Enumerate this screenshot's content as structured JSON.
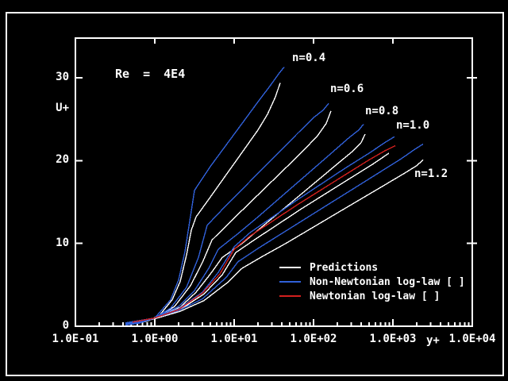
{
  "colors": {
    "background": "#000000",
    "frame": "#FFFFFF",
    "text": "#FFFFFF",
    "predictions": "#FFFFFF",
    "non_newtonian": "#3060D8",
    "newtonian": "#D2201E"
  },
  "legend": {
    "items": [
      {
        "label": "Predictions",
        "color": "#FFFFFF"
      },
      {
        "label": "Non-Newtonian log-law [ ]",
        "color": "#3060D8"
      },
      {
        "label": "Newtonian log-law [ ]",
        "color": "#D2201E"
      }
    ]
  },
  "chart_data": {
    "type": "line",
    "annotation": "Re = 4E4",
    "x_axis": {
      "label": "y+",
      "scale": "log10",
      "range_log10": [
        -1,
        4
      ],
      "tick_labels": [
        {
          "text": "1.0E-01",
          "log": -1
        },
        {
          "text": "1.0E+00",
          "log": 0
        },
        {
          "text": "1.0E+01",
          "log": 1
        },
        {
          "text": "1.0E+02",
          "log": 2
        },
        {
          "text": "1.0E+03",
          "log": 3
        },
        {
          "text": "1.0E+04",
          "log": 4
        }
      ],
      "top_tick_logs": [
        0,
        1,
        2,
        3
      ],
      "minor_ticks": "log decades, multiples 2-9"
    },
    "y_axis": {
      "label": "U+",
      "range": [
        0,
        34.8
      ],
      "tick_labels": [
        {
          "text": "0",
          "value": 0
        },
        {
          "text": "10",
          "value": 10
        },
        {
          "text": "20",
          "value": 20
        },
        {
          "text": "30",
          "value": 30
        }
      ],
      "right_tick_values": [
        10,
        20,
        30
      ]
    },
    "curve_annotations": [
      {
        "text": "n=0.4",
        "x_log": 1.73,
        "u": 33.08
      },
      {
        "text": "n=0.6",
        "x_log": 2.21,
        "u": 29.34
      },
      {
        "text": "n=0.8",
        "x_log": 2.65,
        "u": 26.65
      },
      {
        "text": "n=1.0",
        "x_log": 3.04,
        "u": 24.93
      },
      {
        "text": "n=1.2",
        "x_log": 3.27,
        "u": 19.08
      }
    ],
    "series": [
      {
        "name": "Predictions n=0.4",
        "family": "Predictions",
        "n": 0.4,
        "color": "#FFFFFF",
        "points": [
          [
            -0.3,
            0.2
          ],
          [
            -0.1,
            0.6
          ],
          [
            0.05,
            1.2
          ],
          [
            0.22,
            3.2
          ],
          [
            0.32,
            5.4
          ],
          [
            0.4,
            8.6
          ],
          [
            0.46,
            11.6
          ],
          [
            0.52,
            13.2
          ],
          [
            0.7,
            15.6
          ],
          [
            0.9,
            18.3
          ],
          [
            1.1,
            21.0
          ],
          [
            1.3,
            23.7
          ],
          [
            1.42,
            25.6
          ],
          [
            1.52,
            27.7
          ],
          [
            1.58,
            29.4
          ]
        ]
      },
      {
        "name": "Predictions n=0.6",
        "family": "Predictions",
        "n": 0.6,
        "color": "#FFFFFF",
        "points": [
          [
            -0.3,
            0.3
          ],
          [
            -0.1,
            0.7
          ],
          [
            0.05,
            1.2
          ],
          [
            0.25,
            2.4
          ],
          [
            0.45,
            4.9
          ],
          [
            0.6,
            7.7
          ],
          [
            0.72,
            10.4
          ],
          [
            0.95,
            12.6
          ],
          [
            1.25,
            15.4
          ],
          [
            1.55,
            18.2
          ],
          [
            1.85,
            21.0
          ],
          [
            2.05,
            23.0
          ],
          [
            2.16,
            24.5
          ],
          [
            2.22,
            26.0
          ]
        ]
      },
      {
        "name": "Predictions n=0.8",
        "family": "Predictions",
        "n": 0.8,
        "color": "#FFFFFF",
        "points": [
          [
            -0.3,
            0.35
          ],
          [
            0.0,
            0.9
          ],
          [
            0.32,
            2.3
          ],
          [
            0.52,
            4.1
          ],
          [
            0.7,
            6.3
          ],
          [
            0.85,
            8.3
          ],
          [
            1.1,
            10.0
          ],
          [
            1.35,
            12.0
          ],
          [
            1.65,
            14.4
          ],
          [
            1.95,
            16.8
          ],
          [
            2.25,
            19.2
          ],
          [
            2.5,
            21.2
          ],
          [
            2.6,
            22.2
          ],
          [
            2.65,
            23.2
          ]
        ]
      },
      {
        "name": "Predictions n=1.0",
        "family": "Predictions",
        "n": 1.0,
        "color": "#FFFFFF",
        "points": [
          [
            -0.3,
            0.4
          ],
          [
            0.0,
            0.9
          ],
          [
            0.32,
            2.0
          ],
          [
            0.62,
            3.9
          ],
          [
            0.85,
            6.2
          ],
          [
            1.02,
            8.9
          ],
          [
            1.25,
            10.4
          ],
          [
            1.55,
            12.3
          ],
          [
            1.85,
            14.2
          ],
          [
            2.15,
            16.0
          ],
          [
            2.45,
            17.8
          ],
          [
            2.75,
            19.6
          ],
          [
            2.95,
            20.9
          ]
        ]
      },
      {
        "name": "Predictions n=1.2",
        "family": "Predictions",
        "n": 1.2,
        "color": "#FFFFFF",
        "points": [
          [
            -0.3,
            0.4
          ],
          [
            0.0,
            0.9
          ],
          [
            0.32,
            1.8
          ],
          [
            0.62,
            3.1
          ],
          [
            0.92,
            5.3
          ],
          [
            1.1,
            7.0
          ],
          [
            1.35,
            8.4
          ],
          [
            1.65,
            10.0
          ],
          [
            1.95,
            11.7
          ],
          [
            2.25,
            13.4
          ],
          [
            2.55,
            15.1
          ],
          [
            2.85,
            16.8
          ],
          [
            3.15,
            18.5
          ],
          [
            3.3,
            19.4
          ],
          [
            3.38,
            20.1
          ]
        ]
      },
      {
        "name": "Non-Newtonian log-law n=0.4",
        "family": "Non-Newtonian log-law",
        "n": 0.4,
        "color": "#3060D8",
        "points": [
          [
            -0.37,
            0.15
          ],
          [
            -0.2,
            0.35
          ],
          [
            0.0,
            1.0
          ],
          [
            0.2,
            3.2
          ],
          [
            0.3,
            5.6
          ],
          [
            0.38,
            9.0
          ],
          [
            0.45,
            13.3
          ],
          [
            0.5,
            16.4
          ],
          [
            0.7,
            19.3
          ],
          [
            0.9,
            21.9
          ],
          [
            1.1,
            24.5
          ],
          [
            1.3,
            27.1
          ],
          [
            1.45,
            29.0
          ],
          [
            1.57,
            30.6
          ],
          [
            1.63,
            31.3
          ]
        ]
      },
      {
        "name": "Non-Newtonian log-law n=0.6",
        "family": "Non-Newtonian log-law",
        "n": 0.6,
        "color": "#3060D8",
        "points": [
          [
            -0.37,
            0.25
          ],
          [
            -0.2,
            0.45
          ],
          [
            0.0,
            1.0
          ],
          [
            0.2,
            2.2
          ],
          [
            0.4,
            4.7
          ],
          [
            0.55,
            8.3
          ],
          [
            0.66,
            12.2
          ],
          [
            0.9,
            14.6
          ],
          [
            1.2,
            17.5
          ],
          [
            1.5,
            20.4
          ],
          [
            1.8,
            23.3
          ],
          [
            2.0,
            25.2
          ],
          [
            2.12,
            26.1
          ],
          [
            2.19,
            26.9
          ]
        ]
      },
      {
        "name": "Non-Newtonian log-law n=0.8",
        "family": "Non-Newtonian log-law",
        "n": 0.8,
        "color": "#3060D8",
        "points": [
          [
            -0.37,
            0.3
          ],
          [
            -0.15,
            0.6
          ],
          [
            0.0,
            1.0
          ],
          [
            0.3,
            2.4
          ],
          [
            0.5,
            4.3
          ],
          [
            0.68,
            7.0
          ],
          [
            0.8,
            9.3
          ],
          [
            1.05,
            11.2
          ],
          [
            1.3,
            13.2
          ],
          [
            1.6,
            15.7
          ],
          [
            1.9,
            18.2
          ],
          [
            2.2,
            20.7
          ],
          [
            2.45,
            22.8
          ],
          [
            2.57,
            23.7
          ],
          [
            2.63,
            24.4
          ]
        ]
      },
      {
        "name": "Non-Newtonian log-law n=1.0",
        "family": "Non-Newtonian log-law",
        "n": 1.0,
        "color": "#3060D8",
        "points": [
          [
            -0.37,
            0.35
          ],
          [
            0.0,
            1.0
          ],
          [
            0.3,
            2.1
          ],
          [
            0.6,
            4.1
          ],
          [
            0.8,
            6.5
          ],
          [
            1.0,
            9.6
          ],
          [
            1.2,
            11.3
          ],
          [
            1.5,
            13.3
          ],
          [
            1.8,
            15.3
          ],
          [
            2.1,
            17.2
          ],
          [
            2.4,
            19.1
          ],
          [
            2.7,
            20.9
          ],
          [
            2.9,
            22.2
          ],
          [
            3.02,
            22.9
          ]
        ]
      },
      {
        "name": "Non-Newtonian log-law n=1.2",
        "family": "Non-Newtonian log-law",
        "n": 1.2,
        "color": "#3060D8",
        "points": [
          [
            -0.37,
            0.4
          ],
          [
            0.0,
            1.0
          ],
          [
            0.3,
            1.9
          ],
          [
            0.6,
            3.3
          ],
          [
            0.9,
            5.9
          ],
          [
            1.05,
            7.8
          ],
          [
            1.3,
            9.4
          ],
          [
            1.6,
            11.2
          ],
          [
            1.9,
            13.0
          ],
          [
            2.2,
            14.8
          ],
          [
            2.5,
            16.6
          ],
          [
            2.8,
            18.4
          ],
          [
            3.1,
            20.2
          ],
          [
            3.28,
            21.4
          ],
          [
            3.38,
            22.0
          ]
        ]
      },
      {
        "name": "Newtonian log-law",
        "family": "Newtonian log-law",
        "n": 1.0,
        "color": "#D2201E",
        "points": [
          [
            -0.28,
            0.5
          ],
          [
            0.0,
            1.0
          ],
          [
            0.3,
            2.0
          ],
          [
            0.6,
            4.0
          ],
          [
            0.82,
            6.3
          ],
          [
            1.0,
            9.3
          ],
          [
            1.2,
            10.9
          ],
          [
            1.5,
            12.8
          ],
          [
            1.8,
            14.7
          ],
          [
            2.1,
            16.5
          ],
          [
            2.4,
            18.3
          ],
          [
            2.7,
            20.1
          ],
          [
            2.9,
            21.2
          ],
          [
            3.03,
            21.8
          ]
        ]
      }
    ]
  }
}
